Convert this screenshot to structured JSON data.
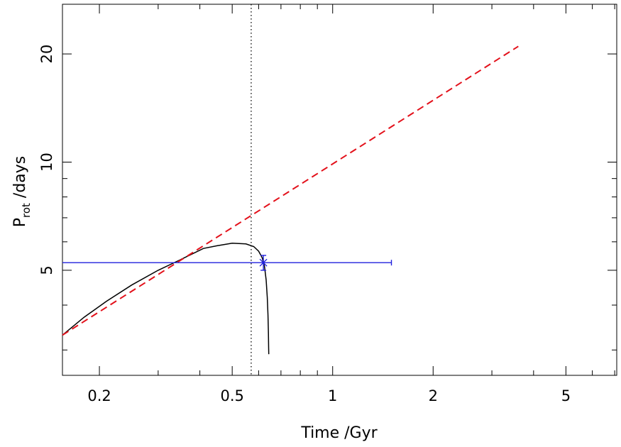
{
  "chart_data": {
    "type": "line",
    "x_scale": "log",
    "y_scale": "log",
    "xlim": [
      0.155,
      7.1
    ],
    "ylim": [
      2.55,
      27.5
    ],
    "xticks_major": [
      0.2,
      0.5,
      1,
      2,
      5
    ],
    "xtick_labels": [
      "0.2",
      "0.5",
      "1",
      "2",
      "5"
    ],
    "xticks_minor": [
      0.3,
      0.4,
      0.6,
      0.7,
      0.8,
      0.9,
      3,
      4,
      6,
      7
    ],
    "yticks_major": [
      5,
      10,
      20
    ],
    "ytick_labels": [
      "5",
      "10",
      "20"
    ],
    "yticks_minor": [
      3,
      4,
      6,
      7,
      8,
      9
    ],
    "xlabel": "Time  /Gyr",
    "ylabel_main": "P",
    "ylabel_sub": "rot",
    "ylabel_rest": "  /days",
    "grid": false,
    "series": [
      {
        "style": "solid",
        "color": "#000000",
        "x": [
          0.155,
          0.18,
          0.21,
          0.25,
          0.3,
          0.35,
          0.41,
          0.45,
          0.5,
          0.55,
          0.58,
          0.6,
          0.615,
          0.625,
          0.632,
          0.637,
          0.64,
          0.642,
          0.643,
          0.6435
        ],
        "y": [
          3.3,
          3.7,
          4.1,
          4.55,
          5.0,
          5.35,
          5.75,
          5.85,
          5.95,
          5.92,
          5.82,
          5.65,
          5.42,
          5.12,
          4.7,
          4.2,
          3.75,
          3.35,
          3.05,
          2.92
        ]
      },
      {
        "style": "dashed",
        "color": "#e3111b",
        "x": [
          0.155,
          3.6
        ],
        "y": [
          3.3,
          21.0
        ]
      }
    ],
    "vline": {
      "x": 0.57,
      "style": "dotted",
      "color": "#000000"
    },
    "data_point": {
      "x": 0.62,
      "y": 5.25,
      "x_err": [
        0.0,
        1.5
      ],
      "y_err": [
        5.0,
        5.5
      ],
      "color": "#2020dd"
    }
  }
}
